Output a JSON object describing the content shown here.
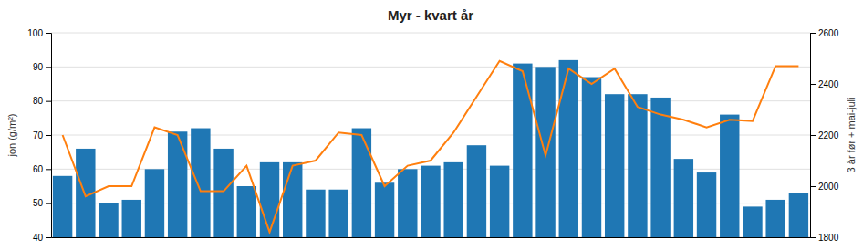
{
  "chart_data": {
    "type": "bar",
    "title": "Myr - kvart år",
    "y_label": "jon (g/m²)",
    "y2_label": "3 år før + mai-juli",
    "categories": [
      null,
      null,
      null,
      null,
      null,
      null,
      null,
      null,
      null,
      null,
      null,
      null,
      null,
      null,
      null,
      null,
      null,
      null,
      null,
      null,
      null,
      null,
      null,
      null,
      null,
      null,
      null,
      null,
      null,
      null,
      null,
      null,
      null
    ],
    "series": [
      {
        "type": "bar",
        "values": [
          58,
          66,
          50,
          51,
          60,
          71,
          72,
          66,
          55,
          62,
          62,
          54,
          54,
          72,
          56,
          60,
          61,
          62,
          67,
          61,
          91,
          90,
          92,
          87,
          82,
          82,
          81,
          63,
          59,
          76,
          49,
          51,
          53
        ]
      },
      {
        "type": "line",
        "axis": "y2",
        "values": [
          2200,
          1960,
          2000,
          2000,
          2230,
          2200,
          1980,
          1980,
          2080,
          1820,
          2080,
          2100,
          2210,
          2200,
          2000,
          2080,
          2100,
          2210,
          2350,
          2490,
          2450,
          2120,
          2460,
          2400,
          2460,
          2310,
          2280,
          2260,
          2230,
          2260,
          2255,
          2470,
          2470
        ]
      }
    ],
    "ylim": [
      40,
      100
    ],
    "yticks": [
      40,
      50,
      60,
      70,
      80,
      90,
      100
    ],
    "y2lim": [
      1800,
      2600
    ],
    "y2ticks": [
      1800,
      2000,
      2200,
      2400,
      2600
    ],
    "grid": true,
    "tick_labels": "y"
  }
}
